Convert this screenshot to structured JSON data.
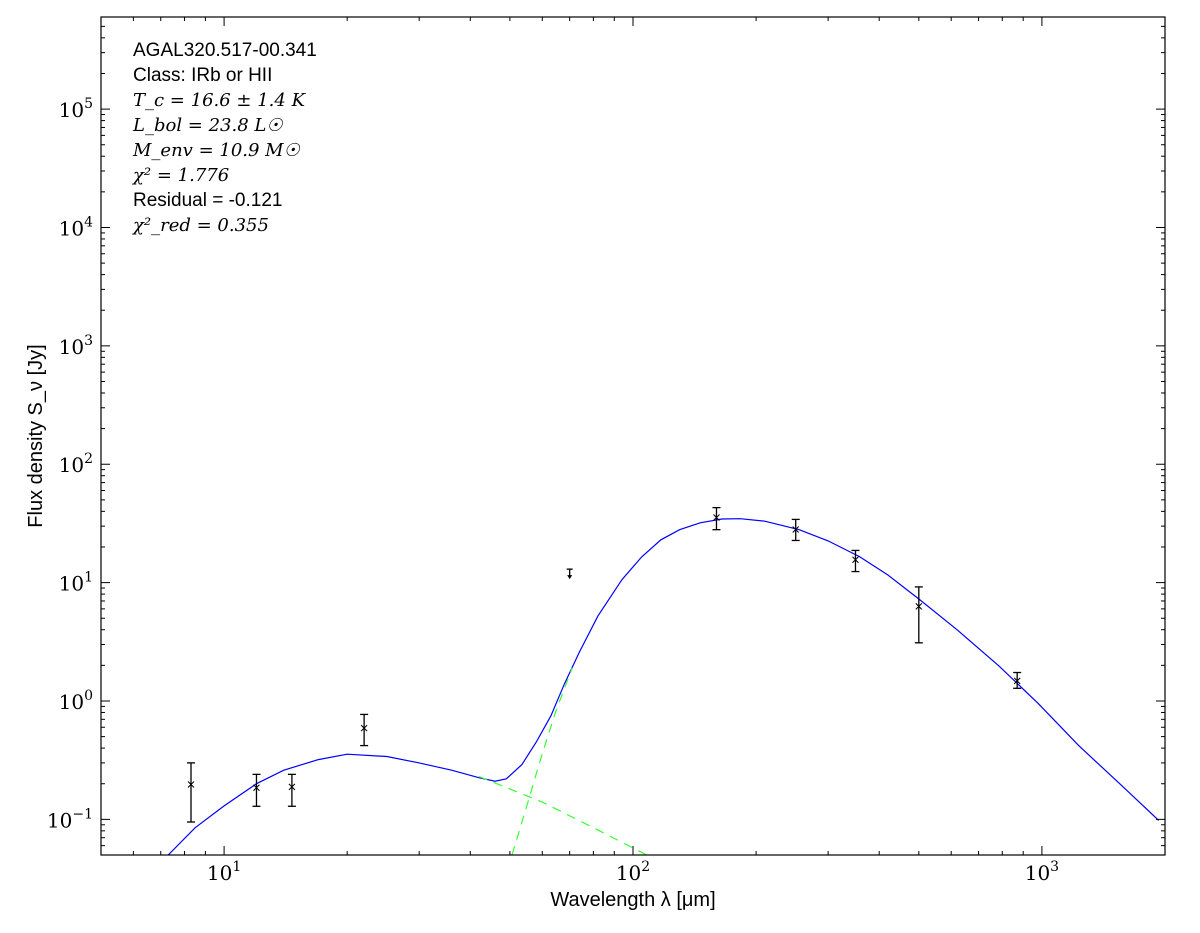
{
  "chart_data": {
    "type": "scatter",
    "xlabel": "Wavelength λ [μm]",
    "ylabel": "Flux density S_ν [Jy]",
    "xscale": "log",
    "yscale": "log",
    "xlim": [
      5,
      2000
    ],
    "ylim": [
      0.05,
      600000
    ],
    "grid": false,
    "x_ticks": [
      {
        "v": 10,
        "b": "10",
        "e": "1"
      },
      {
        "v": 100,
        "b": "10",
        "e": "2"
      },
      {
        "v": 1000,
        "b": "10",
        "e": "3"
      }
    ],
    "y_ticks": [
      {
        "v": 0.1,
        "b": "10",
        "e": "−1"
      },
      {
        "v": 1,
        "b": "10",
        "e": "0"
      },
      {
        "v": 10,
        "b": "10",
        "e": "1"
      },
      {
        "v": 100,
        "b": "10",
        "e": "2"
      },
      {
        "v": 1000,
        "b": "10",
        "e": "3"
      },
      {
        "v": 10000,
        "b": "10",
        "e": "4"
      },
      {
        "v": 100000,
        "b": "10",
        "e": "5"
      }
    ],
    "annotations": {
      "source": "AGAL320.517-00.341",
      "class": "Class: IRb or HII",
      "tc": "T_c = 16.6 ± 1.4 K",
      "lbol": "L_bol = 23.8 L☉",
      "menv": "M_env = 10.9 M☉",
      "chi2": "χ² = 1.776",
      "residual": "Residual = -0.121",
      "chi2red": "χ²_red = 0.355"
    },
    "points": [
      {
        "x": 8.3,
        "y": 0.197,
        "lo": 0.095,
        "hi": 0.3
      },
      {
        "x": 12,
        "y": 0.185,
        "lo": 0.129,
        "hi": 0.24
      },
      {
        "x": 14.65,
        "y": 0.188,
        "lo": 0.129,
        "hi": 0.24
      },
      {
        "x": 22,
        "y": 0.59,
        "lo": 0.42,
        "hi": 0.77
      },
      {
        "x": 160,
        "y": 35.5,
        "lo": 28,
        "hi": 43
      },
      {
        "x": 250,
        "y": 28.1,
        "lo": 22.7,
        "hi": 34.2
      },
      {
        "x": 350,
        "y": 15.6,
        "lo": 12.4,
        "hi": 18.7
      },
      {
        "x": 500,
        "y": 6.3,
        "lo": 3.1,
        "hi": 9.2
      },
      {
        "x": 870,
        "y": 1.48,
        "lo": 1.28,
        "hi": 1.74
      }
    ],
    "upper_limits": [
      {
        "x": 70,
        "y": 13
      }
    ],
    "series": [
      {
        "style": "solid",
        "color": "#0000ff",
        "x": [
          7.3,
          8.5,
          10,
          12,
          14,
          17,
          20,
          25,
          30,
          36,
          42,
          46,
          49,
          53.5,
          58,
          63,
          68,
          74,
          82,
          94,
          105,
          117,
          130,
          146,
          165,
          183,
          210,
          255,
          300,
          358,
          420,
          502,
          620,
          785,
          980,
          1230,
          1550,
          1930
        ],
        "y": [
          0.05,
          0.085,
          0.13,
          0.2,
          0.26,
          0.32,
          0.355,
          0.34,
          0.3,
          0.26,
          0.225,
          0.21,
          0.22,
          0.29,
          0.45,
          0.75,
          1.4,
          2.6,
          5.2,
          10.6,
          16.5,
          23,
          28,
          32,
          34.5,
          34.7,
          33,
          28,
          22.5,
          16.6,
          11.6,
          7.2,
          4.0,
          1.98,
          0.95,
          0.42,
          0.2,
          0.098
        ]
      },
      {
        "style": "dashed",
        "color": "#33ff33",
        "x": [
          42,
          60,
          80,
          108
        ],
        "y": [
          0.23,
          0.14,
          0.085,
          0.05
        ]
      },
      {
        "style": "dashed",
        "color": "#33ff33",
        "x": [
          50.6,
          55,
          60,
          65,
          71
        ],
        "y": [
          0.05,
          0.13,
          0.36,
          0.85,
          1.9
        ]
      }
    ]
  }
}
